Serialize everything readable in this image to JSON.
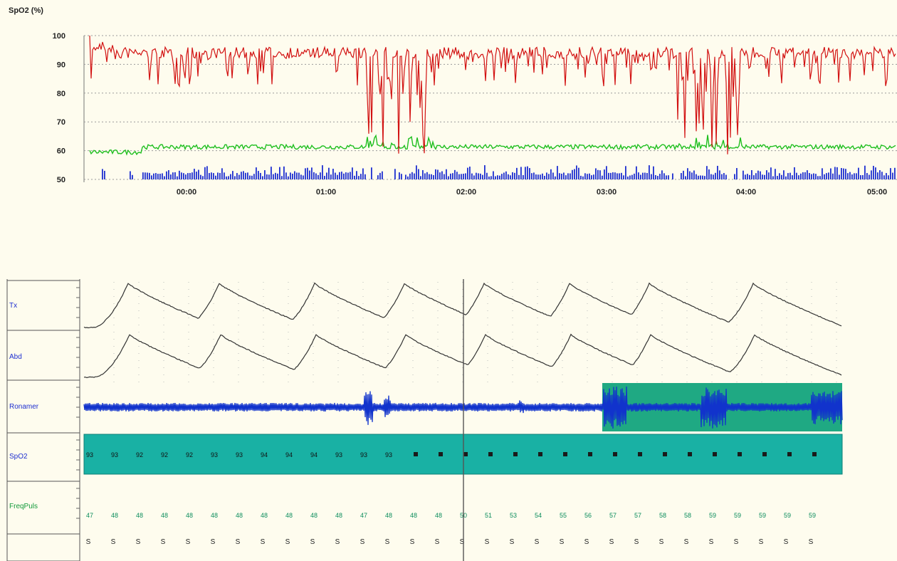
{
  "trend": {
    "y_axis_title": "SpO2 (%)",
    "y_ticks": [
      "100",
      "90",
      "80",
      "70",
      "60",
      "50"
    ],
    "x_ticks": [
      "00:00",
      "01:00",
      "02:00",
      "03:00",
      "04:00",
      "05:00"
    ],
    "colors": {
      "spo2": "#d21111",
      "pulse": "#1fbf1f",
      "events": "#1e2fd0",
      "grid": "#9a9a9a"
    }
  },
  "channels": [
    {
      "label": "Tx",
      "color": "#1e2fd0"
    },
    {
      "label": "Abd",
      "color": "#1e2fd0"
    },
    {
      "label": "Ronamer",
      "color": "#1e2fd0"
    },
    {
      "label": "SpO2",
      "color": "#1e2fd0"
    },
    {
      "label": "FreqPuls",
      "color": "#129a3a"
    }
  ],
  "spo2_row": {
    "values": [
      "93",
      "93",
      "92",
      "92",
      "92",
      "93",
      "93",
      "94",
      "94",
      "94",
      "93",
      "93",
      "93"
    ],
    "fill": "#19b1a4"
  },
  "pulse_row": {
    "values": [
      "47",
      "48",
      "48",
      "48",
      "48",
      "48",
      "48",
      "48",
      "48",
      "48",
      "48",
      "47",
      "48",
      "48",
      "48",
      "50",
      "51",
      "53",
      "54",
      "55",
      "56",
      "57",
      "57",
      "58",
      "58",
      "59",
      "59",
      "59",
      "59",
      "59"
    ]
  },
  "bottom_row": {
    "glyph": "S"
  },
  "colors": {
    "trace": "#333333",
    "snore": "#1133cc",
    "highlight": "#1fa983"
  }
}
